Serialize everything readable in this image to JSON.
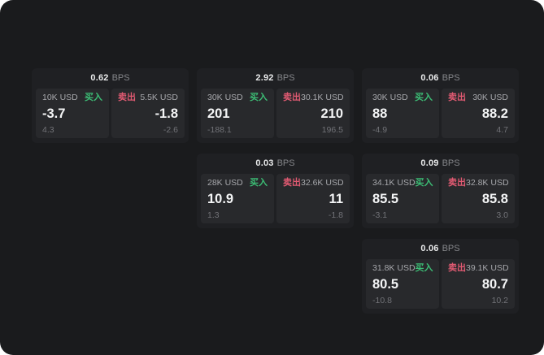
{
  "app": {
    "description": "dark trading quote board with buy/sell tiles",
    "colors": {
      "screen_bg": "#1a1b1d",
      "card_bg": "#1f2023",
      "panel_bg": "#28292c",
      "buy_green": "#3cbd75",
      "sell_red": "#e15a72",
      "price_text": "#f4f5f6",
      "muted_text": "#717277"
    }
  },
  "cards": [
    {
      "col": 0,
      "row": 0,
      "bps_value": "0.62",
      "bps_unit": "BPS",
      "buy": {
        "size": "10K USD",
        "side_label": "买入",
        "price": "-3.7",
        "delta": "4.3"
      },
      "sell": {
        "size": "5.5K USD",
        "side_label": "卖出",
        "price": "-1.8",
        "delta": "-2.6"
      }
    },
    {
      "col": 1,
      "row": 0,
      "bps_value": "2.92",
      "bps_unit": "BPS",
      "buy": {
        "size": "30K USD",
        "side_label": "买入",
        "price": "201",
        "delta": "-188.1"
      },
      "sell": {
        "size": "30.1K USD",
        "side_label": "卖出",
        "price": "210",
        "delta": "196.5"
      }
    },
    {
      "col": 2,
      "row": 0,
      "bps_value": "0.06",
      "bps_unit": "BPS",
      "buy": {
        "size": "30K USD",
        "side_label": "买入",
        "price": "88",
        "delta": "-4.9"
      },
      "sell": {
        "size": "30K USD",
        "side_label": "卖出",
        "price": "88.2",
        "delta": "4.7"
      }
    },
    {
      "col": 1,
      "row": 1,
      "bps_value": "0.03",
      "bps_unit": "BPS",
      "buy": {
        "size": "28K USD",
        "side_label": "买入",
        "price": "10.9",
        "delta": "1.3"
      },
      "sell": {
        "size": "32.6K USD",
        "side_label": "卖出",
        "price": "11",
        "delta": "-1.8"
      }
    },
    {
      "col": 2,
      "row": 1,
      "bps_value": "0.09",
      "bps_unit": "BPS",
      "buy": {
        "size": "34.1K USD",
        "side_label": "买入",
        "price": "85.5",
        "delta": "-3.1"
      },
      "sell": {
        "size": "32.8K USD",
        "side_label": "卖出",
        "price": "85.8",
        "delta": "3.0"
      }
    },
    {
      "col": 2,
      "row": 2,
      "bps_value": "0.06",
      "bps_unit": "BPS",
      "buy": {
        "size": "31.8K USD",
        "side_label": "买入",
        "price": "80.5",
        "delta": "-10.8"
      },
      "sell": {
        "size": "39.1K USD",
        "side_label": "卖出",
        "price": "80.7",
        "delta": "10.2"
      }
    }
  ]
}
